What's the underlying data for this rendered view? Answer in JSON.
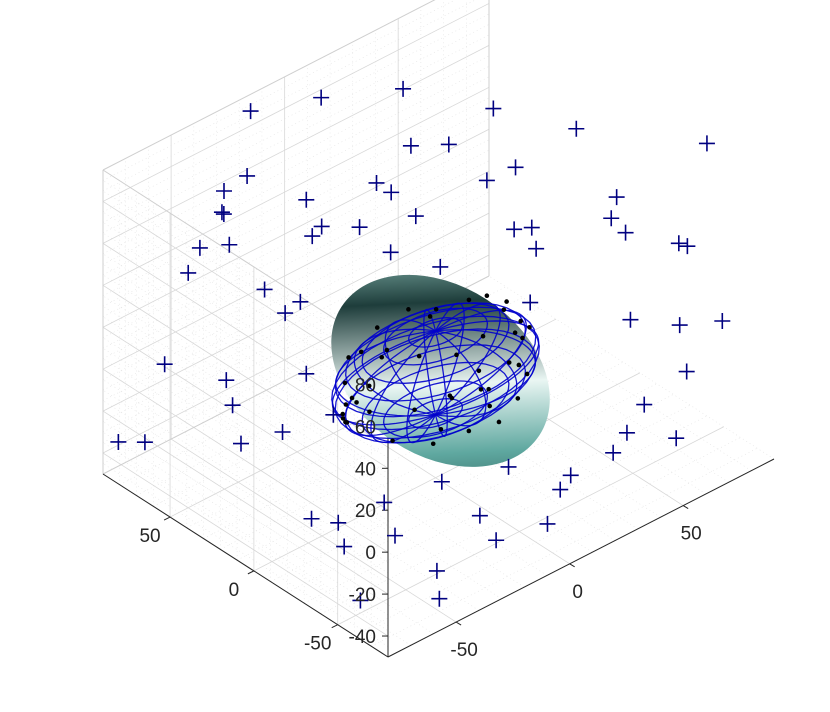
{
  "chart_data": {
    "type": "scatter",
    "subtype": "3d-scatter-with-ellipsoid-fit",
    "title": "",
    "xlabel": "",
    "ylabel": "",
    "zlabel": "",
    "grid": true,
    "minor_grid": true,
    "xlim": [
      -80,
      90
    ],
    "ylim": [
      -80,
      90
    ],
    "zlim": [
      -50,
      95
    ],
    "xticks": [
      -50,
      0,
      50
    ],
    "yticks": [
      -50,
      0,
      50
    ],
    "zticks": [
      -40,
      -20,
      0,
      20,
      40,
      60,
      80
    ],
    "xtick_labels": [
      "-50",
      "0",
      "50"
    ],
    "ytick_labels": [
      "-50",
      "0",
      "50"
    ],
    "ztick_labels": [
      "-40",
      "-20",
      "0",
      "20",
      "40",
      "60",
      "80"
    ],
    "colors": {
      "outlier_marker": "#000080",
      "inlier_marker": "#000000",
      "ellipsoid_fill": "#5fa8a0",
      "ellipsoid_wire": "#0000cc",
      "grid": "#d8d8d8",
      "axis": "#262626"
    },
    "ellipsoid": {
      "center": [
        0,
        0,
        0
      ],
      "radii": [
        40,
        30,
        20
      ]
    },
    "series": [
      {
        "marker": "plus",
        "values": [
          [
            -60,
            45,
            86
          ],
          [
            -72,
            50,
            62
          ],
          [
            -58,
            62,
            60
          ],
          [
            -15,
            90,
            87
          ],
          [
            30,
            60,
            88
          ],
          [
            -40,
            72,
            72
          ],
          [
            -48,
            58,
            58
          ],
          [
            -35,
            80,
            55
          ],
          [
            -28,
            30,
            70
          ],
          [
            -20,
            50,
            68
          ],
          [
            -62,
            18,
            65
          ],
          [
            -50,
            22,
            45
          ],
          [
            -30,
            40,
            30
          ],
          [
            -10,
            60,
            40
          ],
          [
            10,
            40,
            60
          ],
          [
            22,
            65,
            45
          ],
          [
            30,
            10,
            70
          ],
          [
            50,
            20,
            60
          ],
          [
            55,
            40,
            75
          ],
          [
            62,
            0,
            82
          ],
          [
            -5,
            20,
            50
          ],
          [
            8,
            8,
            42
          ],
          [
            42,
            10,
            40
          ],
          [
            48,
            5,
            30
          ],
          [
            65,
            -20,
            58
          ],
          [
            70,
            -10,
            40
          ],
          [
            80,
            -5,
            25
          ],
          [
            85,
            -30,
            30
          ],
          [
            74,
            -50,
            45
          ],
          [
            90,
            -40,
            80
          ],
          [
            60,
            -35,
            10
          ],
          [
            78,
            -40,
            0
          ],
          [
            82,
            -60,
            10
          ],
          [
            70,
            -55,
            -10
          ],
          [
            55,
            -50,
            -20
          ],
          [
            58,
            -65,
            -30
          ],
          [
            45,
            -45,
            -40
          ],
          [
            40,
            -60,
            -20
          ],
          [
            30,
            -40,
            -45
          ],
          [
            -82,
            10,
            25
          ],
          [
            -70,
            30,
            20
          ],
          [
            -60,
            10,
            0
          ],
          [
            -65,
            28,
            -12
          ],
          [
            -75,
            60,
            15
          ],
          [
            -88,
            70,
            -20
          ],
          [
            -80,
            65,
            -22
          ],
          [
            -62,
            -10,
            -30
          ],
          [
            -55,
            -20,
            -42
          ],
          [
            -40,
            -30,
            -40
          ],
          [
            -30,
            -10,
            -40
          ],
          [
            -12,
            -20,
            -35
          ],
          [
            -65,
            -30,
            -20
          ],
          [
            -45,
            0,
            5
          ],
          [
            -20,
            50,
            -15
          ],
          [
            10,
            -30,
            -35
          ],
          [
            -10,
            -40,
            -42
          ],
          [
            18,
            -50,
            -40
          ],
          [
            5,
            -60,
            -44
          ],
          [
            -40,
            -55,
            -44
          ],
          [
            -25,
            -70,
            -30
          ],
          [
            -50,
            -70,
            -44
          ],
          [
            -70,
            -50,
            -44
          ],
          [
            35,
            -10,
            55
          ],
          [
            28,
            30,
            78
          ],
          [
            5,
            75,
            90
          ],
          [
            -35,
            65,
            80
          ],
          [
            15,
            35,
            82
          ],
          [
            -5,
            5,
            75
          ],
          [
            -15,
            25,
            65
          ],
          [
            38,
            -5,
            15
          ]
        ]
      },
      {
        "marker": "dot",
        "values": [
          [
            -38,
            2,
            5
          ],
          [
            -39,
            0,
            -2
          ],
          [
            -40,
            1,
            0
          ],
          [
            -37,
            -3,
            8
          ],
          [
            -36,
            5,
            -6
          ],
          [
            -34,
            8,
            10
          ],
          [
            -32,
            12,
            -8
          ],
          [
            -25,
            18,
            12
          ],
          [
            -22,
            20,
            -10
          ],
          [
            -15,
            24,
            6
          ],
          [
            -10,
            26,
            -14
          ],
          [
            -5,
            28,
            10
          ],
          [
            0,
            29,
            -4
          ],
          [
            8,
            27,
            12
          ],
          [
            12,
            26,
            -12
          ],
          [
            18,
            24,
            8
          ],
          [
            24,
            20,
            -15
          ],
          [
            28,
            18,
            10
          ],
          [
            32,
            15,
            -8
          ],
          [
            36,
            8,
            6
          ],
          [
            38,
            4,
            -4
          ],
          [
            39,
            2,
            2
          ],
          [
            34,
            -10,
            8
          ],
          [
            30,
            -14,
            -10
          ],
          [
            25,
            -18,
            12
          ],
          [
            20,
            -22,
            -12
          ],
          [
            14,
            -25,
            10
          ],
          [
            8,
            -27,
            -14
          ],
          [
            2,
            -29,
            6
          ],
          [
            -6,
            -28,
            -10
          ],
          [
            -12,
            -26,
            8
          ],
          [
            -18,
            -23,
            -12
          ],
          [
            -24,
            -20,
            6
          ],
          [
            -30,
            -15,
            -8
          ],
          [
            -35,
            -8,
            5
          ],
          [
            20,
            0,
            -19
          ],
          [
            10,
            5,
            -19
          ],
          [
            -5,
            -10,
            -19
          ],
          [
            15,
            -12,
            -18
          ],
          [
            25,
            8,
            -17
          ],
          [
            30,
            10,
            15
          ],
          [
            35,
            5,
            12
          ],
          [
            33,
            -5,
            -12
          ],
          [
            5,
            10,
            19
          ],
          [
            -20,
            5,
            16
          ]
        ]
      }
    ]
  }
}
